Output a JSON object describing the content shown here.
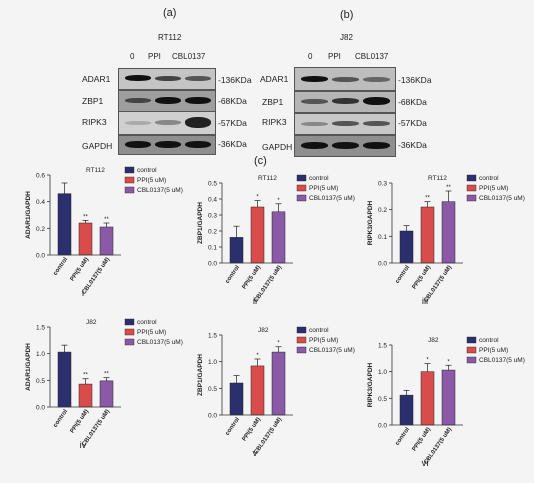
{
  "panels": {
    "a": "(a)",
    "b": "(b)",
    "c": "(c)"
  },
  "blot_a": {
    "title": "RT112",
    "lanes": [
      "0",
      "PPI",
      "CBL0137"
    ],
    "rows": [
      {
        "label": "ADAR1",
        "kda": "-136KDa"
      },
      {
        "label": "ZBP1",
        "kda": "-68KDa"
      },
      {
        "label": "RIPK3",
        "kda": "-57KDa"
      },
      {
        "label": "GAPDH",
        "kda": "-36KDa"
      }
    ]
  },
  "blot_b": {
    "title": "J82",
    "lanes": [
      "0",
      "PPI",
      "CBL0137"
    ],
    "rows": [
      {
        "label": "ADAR1",
        "kda": "-136KDa"
      },
      {
        "label": "ZBP1",
        "kda": "-68KDa"
      },
      {
        "label": "RIPK3",
        "kda": "-57KDa"
      },
      {
        "label": "GAPDH",
        "kda": "-36KDa"
      }
    ]
  },
  "colors": {
    "control": "#2b2f6e",
    "ppi": "#d94c4c",
    "cbl": "#8a5aa6"
  },
  "chart_data": [
    {
      "id": "i",
      "type": "bar",
      "title": "RT112",
      "ylabel": "ADAR1/GAPDH",
      "categories": [
        "control",
        "PPI(5 uM)",
        "CBL0137(5 uM)"
      ],
      "values": [
        0.46,
        0.24,
        0.21
      ],
      "errors": [
        0.08,
        0.02,
        0.03
      ],
      "sig": [
        "",
        "**",
        "**"
      ],
      "ylim": [
        0,
        0.6
      ],
      "yticks": [
        "0.0",
        "0.2",
        "0.4",
        "0.6"
      ],
      "legend": [
        "control",
        "PPI(5 uM)",
        "CBL0137(5 uM)"
      ],
      "roman": "i"
    },
    {
      "id": "ii",
      "type": "bar",
      "title": "RT112",
      "ylabel": "ZBP1/GAPDH",
      "categories": [
        "control",
        "PPI(5 uM)",
        "CBL0137(5 uM)"
      ],
      "values": [
        0.16,
        0.35,
        0.32
      ],
      "errors": [
        0.07,
        0.04,
        0.05
      ],
      "sig": [
        "",
        "*",
        "*"
      ],
      "ylim": [
        0,
        0.5
      ],
      "yticks": [
        "0.0",
        "0.1",
        "0.2",
        "0.3",
        "0.4",
        "0.5"
      ],
      "legend": [
        "control",
        "PPI(5 uM)",
        "CBL0137(5 uM)"
      ],
      "roman": "ii"
    },
    {
      "id": "iii",
      "type": "bar",
      "title": "RT112",
      "ylabel": "RIPK3/GAPDH",
      "categories": [
        "control",
        "PPI(5 uM)",
        "CBL0137(5 uM)"
      ],
      "values": [
        0.12,
        0.21,
        0.23
      ],
      "errors": [
        0.02,
        0.02,
        0.04
      ],
      "sig": [
        "",
        "**",
        "**"
      ],
      "ylim": [
        0,
        0.3
      ],
      "yticks": [
        "0.0",
        "0.1",
        "0.2",
        "0.3"
      ],
      "legend": [
        "control",
        "PPI(5 uM)",
        "CBL0137(5 uM)"
      ],
      "roman": "iii"
    },
    {
      "id": "iv",
      "type": "bar",
      "title": "J82",
      "ylabel": "ADAR1/GAPDH",
      "categories": [
        "control",
        "PPI(5 uM)",
        "CBL0137(5 uM)"
      ],
      "values": [
        1.03,
        0.43,
        0.49
      ],
      "errors": [
        0.13,
        0.1,
        0.06
      ],
      "sig": [
        "",
        "**",
        "**"
      ],
      "ylim": [
        0,
        1.5
      ],
      "yticks": [
        "0.0",
        "0.5",
        "1.0",
        "1.5"
      ],
      "legend": [
        "control",
        "PPI(5 uM)",
        "CBL0137(5 uM)"
      ],
      "roman": "iv"
    },
    {
      "id": "v",
      "type": "bar",
      "title": "J82",
      "ylabel": "ZBP1/GAPDH",
      "categories": [
        "control",
        "PPI(5 uM)",
        "CBL0137(5 uM)"
      ],
      "values": [
        0.6,
        0.92,
        1.18
      ],
      "errors": [
        0.14,
        0.13,
        0.1
      ],
      "sig": [
        "",
        "*",
        "*"
      ],
      "ylim": [
        0,
        1.5
      ],
      "yticks": [
        "0.0",
        "0.5",
        "1.0",
        "1.5"
      ],
      "legend": [
        "control",
        "PPI(5 uM)",
        "CBL0137(5 uM)"
      ],
      "roman": "v"
    },
    {
      "id": "vi",
      "type": "bar",
      "title": "J82",
      "ylabel": "RIPK3/GAPDH",
      "categories": [
        "control",
        "PPI(5 uM)",
        "CBL0137(5 uM)"
      ],
      "values": [
        0.56,
        1.0,
        1.03
      ],
      "errors": [
        0.09,
        0.15,
        0.09
      ],
      "sig": [
        "",
        "*",
        "*"
      ],
      "ylim": [
        0,
        1.5
      ],
      "yticks": [
        "0.0",
        "0.5",
        "1.0",
        "1.5"
      ],
      "legend": [
        "control",
        "PPI(5 uM)",
        "CBL0137(5 uM)"
      ],
      "roman": "vi"
    }
  ]
}
